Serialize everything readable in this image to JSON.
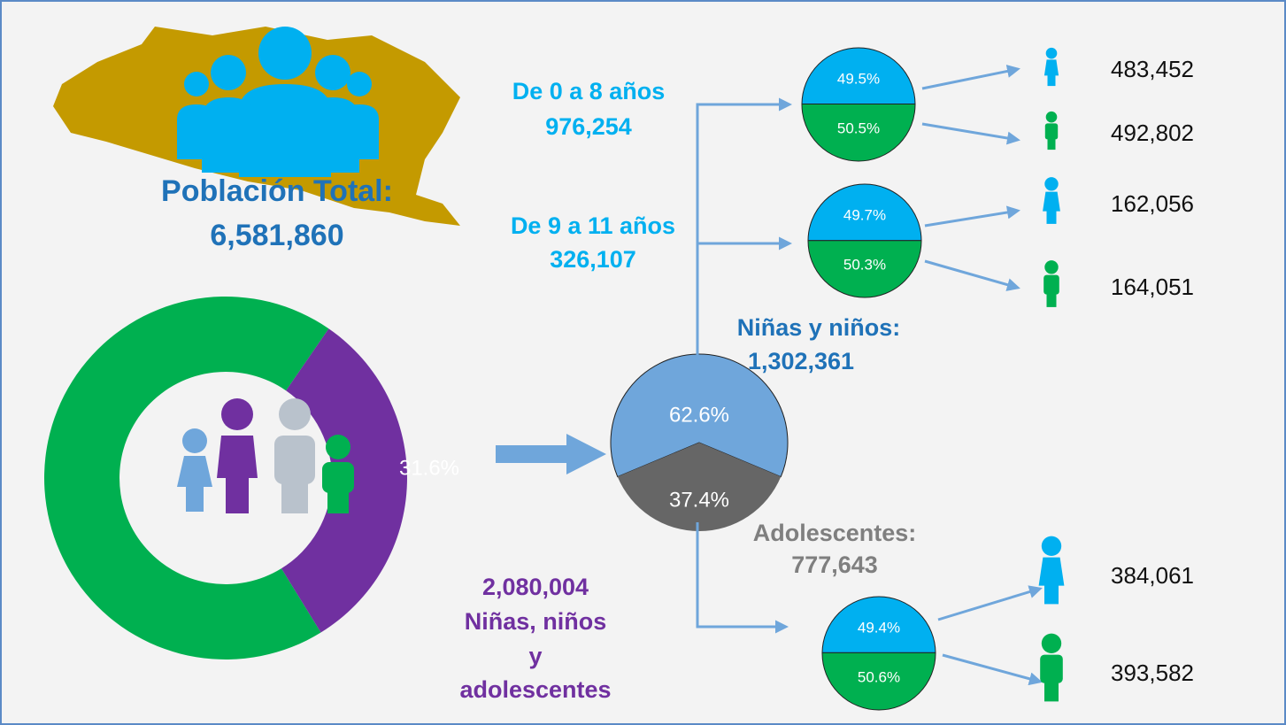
{
  "total": {
    "title": "Población Total:",
    "value": "6,581,860"
  },
  "donut": {
    "values": [
      31.6
    ],
    "value_labels": [
      "31.6%"
    ],
    "color": "#7030a0",
    "rest_color": "#00b050"
  },
  "group": {
    "value": "2,080,004",
    "lines": [
      "Niñas, niños",
      "y",
      "adolescentes"
    ]
  },
  "split": {
    "values": [
      62.6,
      37.4
    ],
    "value_labels": [
      "62.6%",
      "37.4%"
    ],
    "colors": [
      "#6fa6db",
      "#666666"
    ]
  },
  "children": {
    "title": "Niñas y niños:",
    "value": "1,302,361"
  },
  "teens": {
    "title": "Adolescentes:",
    "value": "777,643"
  },
  "age_groups": [
    {
      "title": "De 0 a 8 años",
      "value": "976,254",
      "values": [
        49.5,
        50.5
      ],
      "value_labels": [
        "49.5%",
        "50.5%"
      ],
      "counts": [
        "483,452",
        "492,802"
      ]
    },
    {
      "title": "De 9 a 11 años",
      "value": "326,107",
      "values": [
        49.7,
        50.3
      ],
      "value_labels": [
        "49.7%",
        "50.3%"
      ],
      "counts": [
        "162,056",
        "164,051"
      ]
    }
  ],
  "teen_split": {
    "values": [
      49.4,
      50.6
    ],
    "value_labels": [
      "49.4%",
      "50.6%"
    ],
    "counts": [
      "384,061",
      "393,582"
    ]
  },
  "split_colors": [
    "#00b0f0",
    "#00b050"
  ]
}
